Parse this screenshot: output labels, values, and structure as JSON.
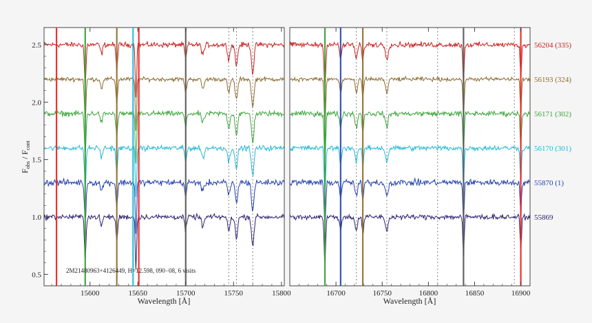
{
  "chart_data": {
    "type": "line",
    "title": "",
    "ylabel_main": "F",
    "ylabel_sub1": "obs",
    "ylabel_mid": " / F",
    "ylabel_sub2": "cont",
    "xlabel": "Wavelength [Å]",
    "ylim": [
      0.4,
      2.65
    ],
    "yticks": [
      "0.5",
      "1.0",
      "1.5",
      "2.0",
      "2.5"
    ],
    "annotation": "2M21480963+4126449,    H=12.598,    090−08,    6 visits",
    "panels": [
      {
        "xlim": [
          15552,
          15803
        ],
        "xticks": [
          "15600",
          "15650",
          "15700",
          "15750",
          "15800"
        ],
        "dashed_lines": [
          15745,
          15753,
          15770
        ],
        "telluric_lines": [
          {
            "x": 15565,
            "color": "#e8201e"
          },
          {
            "x": 15595,
            "color": "#2e9c2e"
          },
          {
            "x": 15628,
            "color": "#8c6a2a"
          },
          {
            "x": 15645,
            "color": "#1fb8d8"
          },
          {
            "x": 15651,
            "color": "#e8201e"
          },
          {
            "x": 15700,
            "color": "#555555"
          }
        ],
        "absorption": [
          {
            "x": 15595,
            "depth": 0.35,
            "w": 1.2
          },
          {
            "x": 15612,
            "depth": 0.08,
            "w": 1.5
          },
          {
            "x": 15628,
            "depth": 0.2,
            "w": 1.3
          },
          {
            "x": 15648,
            "depth": 0.45,
            "w": 1.0
          },
          {
            "x": 15700,
            "depth": 0.12,
            "w": 1.4
          },
          {
            "x": 15718,
            "depth": 0.08,
            "w": 2.0
          },
          {
            "x": 15745,
            "depth": 0.12,
            "w": 1.8
          },
          {
            "x": 15753,
            "depth": 0.18,
            "w": 1.8
          },
          {
            "x": 15770,
            "depth": 0.25,
            "w": 1.8
          }
        ]
      },
      {
        "xlim": [
          16650,
          16910
        ],
        "xticks": [
          "16700",
          "16750",
          "16800",
          "16850",
          "16900"
        ],
        "dashed_lines": [
          16722,
          16755,
          16810,
          16893
        ],
        "telluric_lines": [
          {
            "x": 16688,
            "color": "#2e9c2e"
          },
          {
            "x": 16705,
            "color": "#1f3fb0"
          },
          {
            "x": 16729,
            "color": "#8c6a2a"
          },
          {
            "x": 16838,
            "color": "#555555"
          },
          {
            "x": 16900,
            "color": "#e8201e"
          }
        ],
        "absorption": [
          {
            "x": 16688,
            "depth": 0.4,
            "w": 1.2
          },
          {
            "x": 16705,
            "depth": 0.12,
            "w": 1.5
          },
          {
            "x": 16722,
            "depth": 0.12,
            "w": 1.8
          },
          {
            "x": 16729,
            "depth": 0.15,
            "w": 1.3
          },
          {
            "x": 16755,
            "depth": 0.12,
            "w": 2.0
          },
          {
            "x": 16838,
            "depth": 0.35,
            "w": 1.0
          },
          {
            "x": 16900,
            "depth": 0.3,
            "w": 1.0
          }
        ]
      }
    ],
    "series": [
      {
        "name": "56204 (335)",
        "offset": 2.5,
        "color": "#c8201e",
        "noise": 0.025
      },
      {
        "name": "56193 (324)",
        "offset": 2.2,
        "color": "#8c6a2a",
        "noise": 0.02
      },
      {
        "name": "56171 (302)",
        "offset": 1.9,
        "color": "#3aa33a",
        "noise": 0.025
      },
      {
        "name": "56170 (301)",
        "offset": 1.6,
        "color": "#1fb8d8",
        "noise": 0.025
      },
      {
        "name": "55870 (1)",
        "offset": 1.3,
        "color": "#1f3fb0",
        "noise": 0.03
      },
      {
        "name": "55869",
        "offset": 1.0,
        "color": "#2a1f6e",
        "noise": 0.025
      }
    ]
  }
}
